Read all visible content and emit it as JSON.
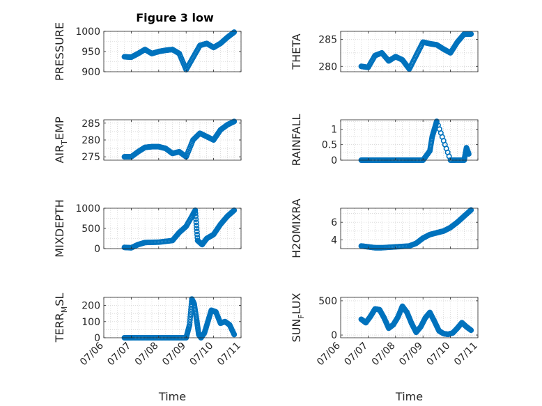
{
  "figure_title": "Figure 3 low",
  "colors": {
    "marker": "#0072BD",
    "axis": "#262626",
    "grid": "#c8c8c8",
    "background": "#ffffff"
  },
  "x_tick_labels": [
    "07/06",
    "07/07",
    "07/08",
    "07/09",
    "07/10",
    "07/11"
  ],
  "chart_data": [
    {
      "id": "pressure",
      "type": "scatter",
      "title": "Figure 3 low",
      "ylabel": "PRESSURE",
      "xlabel": "",
      "xlim": [
        "07/06",
        "07/11"
      ],
      "ylim": [
        900,
        1000
      ],
      "yticks": [
        900,
        950,
        1000
      ],
      "grid": true,
      "x": [
        "07/06 18:00",
        "07/07 00:00",
        "07/07 06:00",
        "07/07 12:00",
        "07/07 18:00",
        "07/08 00:00",
        "07/08 06:00",
        "07/08 12:00",
        "07/08 18:00",
        "07/09 00:00",
        "07/09 06:00",
        "07/09 12:00",
        "07/09 18:00",
        "07/10 00:00",
        "07/10 06:00",
        "07/10 12:00",
        "07/10 18:00"
      ],
      "y": [
        937,
        936,
        945,
        955,
        945,
        950,
        953,
        955,
        945,
        905,
        935,
        965,
        970,
        960,
        970,
        985,
        998
      ]
    },
    {
      "id": "theta",
      "type": "scatter",
      "ylabel": "THETA",
      "xlabel": "",
      "xlim": [
        "07/06",
        "07/11"
      ],
      "ylim": [
        279,
        286.5
      ],
      "yticks": [
        280,
        285
      ],
      "grid": true,
      "x": [
        "07/06 18:00",
        "07/07 00:00",
        "07/07 06:00",
        "07/07 12:00",
        "07/07 18:00",
        "07/08 00:00",
        "07/08 06:00",
        "07/08 12:00",
        "07/08 18:00",
        "07/09 00:00",
        "07/09 06:00",
        "07/09 12:00",
        "07/09 18:00",
        "07/10 00:00",
        "07/10 06:00",
        "07/10 12:00",
        "07/10 18:00"
      ],
      "y": [
        280,
        279.8,
        282,
        282.5,
        281,
        281.8,
        281.2,
        279.5,
        282,
        284.5,
        284.2,
        284,
        283.2,
        282.5,
        284.5,
        286,
        286
      ]
    },
    {
      "id": "air_temp",
      "type": "scatter",
      "ylabel": "AIR_TEMP",
      "xlabel": "",
      "xlim": [
        "07/06",
        "07/11"
      ],
      "ylim": [
        274,
        286
      ],
      "yticks": [
        275,
        280,
        285
      ],
      "grid": true,
      "x": [
        "07/06 18:00",
        "07/07 00:00",
        "07/07 06:00",
        "07/07 12:00",
        "07/07 18:00",
        "07/08 00:00",
        "07/08 06:00",
        "07/08 12:00",
        "07/08 18:00",
        "07/09 00:00",
        "07/09 06:00",
        "07/09 12:00",
        "07/09 18:00",
        "07/10 00:00",
        "07/10 06:00",
        "07/10 12:00",
        "07/10 18:00"
      ],
      "y": [
        275,
        275,
        276.5,
        277.8,
        278,
        278,
        277.5,
        276,
        276.5,
        275,
        280,
        282,
        281,
        280,
        283,
        284.5,
        285.5
      ]
    },
    {
      "id": "rainfall",
      "type": "scatter",
      "ylabel": "RAINFALL",
      "xlabel": "",
      "xlim": [
        "07/06",
        "07/11"
      ],
      "ylim": [
        0,
        1.3
      ],
      "yticks": [
        0,
        0.5,
        1
      ],
      "grid": true,
      "x": [
        "07/06 18:00",
        "07/07 00:00",
        "07/07 12:00",
        "07/08 00:00",
        "07/08 12:00",
        "07/09 00:00",
        "07/09 06:00",
        "07/09 08:00",
        "07/09 10:00",
        "07/09 12:00",
        "07/10 00:00",
        "07/10 12:00",
        "07/10 14:00",
        "07/10 16:00"
      ],
      "y": [
        0,
        0,
        0,
        0,
        0,
        0,
        0.3,
        0.75,
        1,
        1.25,
        0,
        0,
        0.4,
        0.2
      ]
    },
    {
      "id": "mixdepth",
      "type": "scatter",
      "ylabel": "MIXDEPTH",
      "xlabel": "",
      "xlim": [
        "07/06",
        "07/11"
      ],
      "ylim": [
        0,
        1000
      ],
      "yticks": [
        0,
        500,
        1000
      ],
      "grid": true,
      "x": [
        "07/06 18:00",
        "07/07 00:00",
        "07/07 06:00",
        "07/07 12:00",
        "07/08 00:00",
        "07/08 12:00",
        "07/08 18:00",
        "07/09 00:00",
        "07/09 06:00",
        "07/09 08:00",
        "07/09 10:00",
        "07/09 14:00",
        "07/09 18:00",
        "07/10 00:00",
        "07/10 06:00",
        "07/10 12:00",
        "07/10 18:00"
      ],
      "y": [
        30,
        20,
        100,
        150,
        160,
        200,
        400,
        550,
        850,
        950,
        200,
        100,
        250,
        350,
        600,
        800,
        950
      ]
    },
    {
      "id": "h2omixra",
      "type": "scatter",
      "ylabel": "H2OMIXRA",
      "xlabel": "",
      "xlim": [
        "07/06",
        "07/11"
      ],
      "ylim": [
        3,
        7.6
      ],
      "yticks": [
        4,
        6
      ],
      "grid": true,
      "x": [
        "07/06 18:00",
        "07/07 00:00",
        "07/07 06:00",
        "07/07 12:00",
        "07/08 00:00",
        "07/08 12:00",
        "07/08 18:00",
        "07/09 00:00",
        "07/09 06:00",
        "07/09 12:00",
        "07/09 18:00",
        "07/10 00:00",
        "07/10 06:00",
        "07/10 12:00",
        "07/10 18:00"
      ],
      "y": [
        3.3,
        3.2,
        3.1,
        3.1,
        3.2,
        3.3,
        3.6,
        4.2,
        4.6,
        4.8,
        5,
        5.4,
        6,
        6.7,
        7.4
      ]
    },
    {
      "id": "terr_msl",
      "type": "scatter",
      "ylabel": "TERR_MSL",
      "xlabel": "Time",
      "xlim": [
        "07/06",
        "07/11"
      ],
      "ylim": [
        0,
        250
      ],
      "yticks": [
        0,
        100,
        200
      ],
      "grid": true,
      "x": [
        "07/06 18:00",
        "07/07 00:00",
        "07/07 12:00",
        "07/08 00:00",
        "07/08 12:00",
        "07/09 00:00",
        "07/09 03:00",
        "07/09 05:00",
        "07/09 07:00",
        "07/09 09:00",
        "07/09 11:00",
        "07/09 13:00",
        "07/09 16:00",
        "07/09 19:00",
        "07/09 22:00",
        "07/10 02:00",
        "07/10 06:00",
        "07/10 10:00",
        "07/10 14:00",
        "07/10 18:00"
      ],
      "y": [
        0,
        0,
        0,
        0,
        0,
        0,
        80,
        240,
        210,
        120,
        20,
        0,
        30,
        100,
        170,
        160,
        90,
        100,
        80,
        20
      ]
    },
    {
      "id": "sun_flux",
      "type": "scatter",
      "ylabel": "SUN_FLUX",
      "xlabel": "Time",
      "xlim": [
        "07/06",
        "07/11"
      ],
      "ylim": [
        -40,
        550
      ],
      "yticks": [
        0,
        500
      ],
      "grid": true,
      "x": [
        "07/06 18:00",
        "07/06 22:00",
        "07/07 02:00",
        "07/07 06:00",
        "07/07 10:00",
        "07/07 14:00",
        "07/07 18:00",
        "07/07 22:00",
        "07/08 02:00",
        "07/08 06:00",
        "07/08 10:00",
        "07/08 14:00",
        "07/08 18:00",
        "07/08 22:00",
        "07/09 02:00",
        "07/09 06:00",
        "07/09 10:00",
        "07/09 14:00",
        "07/09 18:00",
        "07/09 22:00",
        "07/10 02:00",
        "07/10 06:00",
        "07/10 10:00",
        "07/10 14:00",
        "07/10 18:00"
      ],
      "y": [
        230,
        180,
        270,
        380,
        370,
        250,
        100,
        150,
        260,
        420,
        330,
        170,
        40,
        120,
        250,
        330,
        200,
        60,
        20,
        10,
        30,
        100,
        180,
        120,
        70
      ]
    }
  ]
}
